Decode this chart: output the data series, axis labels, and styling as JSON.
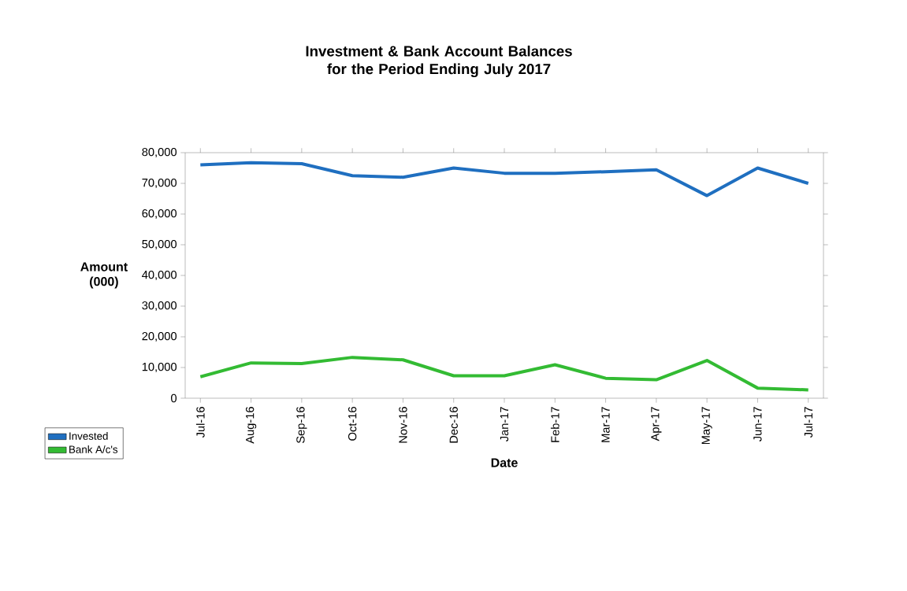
{
  "chart_data": {
    "type": "line",
    "title": "Investment & Bank Account  Balances for the Period Ending July 2017",
    "xlabel": "Date",
    "ylabel": "Amount (000)",
    "categories": [
      "Jul-16",
      "Aug-16",
      "Sep-16",
      "Oct-16",
      "Nov-16",
      "Dec-16",
      "Jan-17",
      "Feb-17",
      "Mar-17",
      "Apr-17",
      "May-17",
      "Jun-17",
      "Jul-17"
    ],
    "series": [
      {
        "name": "Invested",
        "color": "#1f6fc0",
        "values": [
          76000,
          76700,
          76400,
          72500,
          72000,
          75000,
          73300,
          73300,
          73800,
          74400,
          66000,
          75000,
          70000
        ]
      },
      {
        "name": "Bank A/c's",
        "color": "#33bb33",
        "values": [
          7000,
          11500,
          11300,
          13300,
          12500,
          7300,
          7300,
          10900,
          6500,
          6000,
          12300,
          3300,
          2700
        ]
      }
    ],
    "ylim": [
      0,
      80000
    ],
    "yticks": [
      {
        "value": 0,
        "label": "0"
      },
      {
        "value": 10000,
        "label": "10,000"
      },
      {
        "value": 20000,
        "label": "20,000"
      },
      {
        "value": 30000,
        "label": "30,000"
      },
      {
        "value": 40000,
        "label": "40,000"
      },
      {
        "value": 50000,
        "label": "50,000"
      },
      {
        "value": 60000,
        "label": "60,000"
      },
      {
        "value": 70000,
        "label": "70,000"
      },
      {
        "value": 80000,
        "label": "80,000"
      }
    ],
    "grid": false,
    "legend": "bottom left",
    "marker": "none",
    "line_style": "solid"
  }
}
